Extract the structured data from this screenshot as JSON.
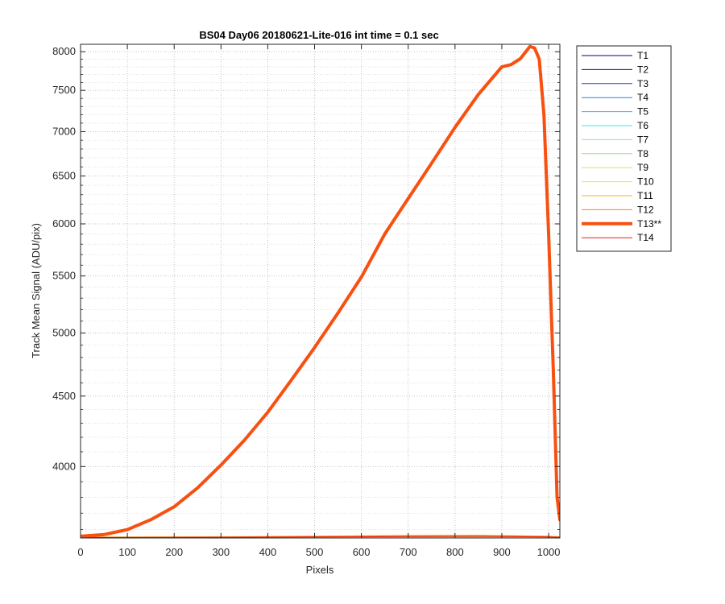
{
  "chart_data": {
    "type": "line",
    "title": "BS04 Day06 20180621-Lite-016 int time = 0.1 sec",
    "xlabel": "Pixels",
    "ylabel": "Track Mean Signal (ADU/pix)",
    "xlim": [
      0,
      1024
    ],
    "ylim": [
      3550,
      8100
    ],
    "yscale": "log",
    "x_ticks": [
      0,
      100,
      200,
      300,
      400,
      500,
      600,
      700,
      800,
      900,
      1000
    ],
    "y_ticks": [
      4000,
      4500,
      5000,
      5500,
      6000,
      6500,
      7000,
      7500,
      8000
    ],
    "y_minor_ticks": [
      3600,
      3700,
      3800,
      3900,
      4100,
      4200,
      4300,
      4400,
      4600,
      4700,
      4800,
      4900,
      5100,
      5200,
      5300,
      5400,
      5600,
      5700,
      5800,
      5900,
      6100,
      6200,
      6300,
      6400,
      6600,
      6700,
      6800,
      6900,
      7100,
      7200,
      7300,
      7400,
      7600,
      7700,
      7800,
      7900
    ],
    "grid": true,
    "minor_grid": true,
    "legend_position": "outside-right",
    "series": [
      {
        "name": "T1",
        "color": "#00008f",
        "width": 1,
        "x": [
          0,
          1024
        ],
        "y": [
          3552,
          3552
        ]
      },
      {
        "name": "T2",
        "color": "#0000d6",
        "width": 1,
        "x": [
          0,
          1024
        ],
        "y": [
          3552,
          3552
        ]
      },
      {
        "name": "T3",
        "color": "#1a3fe0",
        "width": 1,
        "x": [
          0,
          1024
        ],
        "y": [
          3552,
          3552
        ]
      },
      {
        "name": "T4",
        "color": "#2a7fe6",
        "width": 1,
        "x": [
          0,
          1024
        ],
        "y": [
          3553,
          3553
        ]
      },
      {
        "name": "T5",
        "color": "#30b4f0",
        "width": 1,
        "x": [
          0,
          1024
        ],
        "y": [
          3553,
          3553
        ]
      },
      {
        "name": "T6",
        "color": "#3ee6ea",
        "width": 1,
        "x": [
          0,
          1024
        ],
        "y": [
          3553,
          3553
        ]
      },
      {
        "name": "T7",
        "color": "#7ee8c8",
        "width": 1,
        "x": [
          0,
          1024
        ],
        "y": [
          3553,
          3553
        ]
      },
      {
        "name": "T8",
        "color": "#8ee86e",
        "width": 1,
        "x": [
          0,
          1024
        ],
        "y": [
          3554,
          3554
        ]
      },
      {
        "name": "T9",
        "color": "#c8ee50",
        "width": 1,
        "x": [
          0,
          1024
        ],
        "y": [
          3554,
          3554
        ]
      },
      {
        "name": "T10",
        "color": "#f8e816",
        "width": 1,
        "x": [
          0,
          300,
          500,
          700,
          850,
          1000,
          1024
        ],
        "y": [
          3555,
          3556,
          3560,
          3565,
          3566,
          3560,
          3557
        ]
      },
      {
        "name": "T11",
        "color": "#f4b41e",
        "width": 1,
        "x": [
          0,
          300,
          500,
          700,
          850,
          1000,
          1024
        ],
        "y": [
          3555,
          3557,
          3561,
          3566,
          3567,
          3561,
          3557
        ]
      },
      {
        "name": "T12",
        "color": "#f08a1e",
        "width": 1,
        "x": [
          0,
          300,
          500,
          700,
          850,
          1000,
          1024
        ],
        "y": [
          3554,
          3556,
          3559,
          3563,
          3564,
          3559,
          3556
        ]
      },
      {
        "name": "T13**",
        "color": "#f85010",
        "width": 4,
        "x": [
          0,
          50,
          100,
          150,
          200,
          250,
          300,
          350,
          400,
          450,
          500,
          550,
          600,
          650,
          700,
          750,
          800,
          850,
          900,
          920,
          940,
          960,
          970,
          980,
          990,
          1000,
          1010,
          1018,
          1024
        ],
        "y": [
          3560,
          3570,
          3600,
          3660,
          3740,
          3860,
          4010,
          4180,
          4380,
          4620,
          4880,
          5170,
          5490,
          5900,
          6260,
          6640,
          7050,
          7450,
          7800,
          7830,
          7910,
          8070,
          8050,
          7900,
          7200,
          5900,
          4700,
          3800,
          3660
        ]
      },
      {
        "name": "T14",
        "color": "#f01a1a",
        "width": 1,
        "x": [
          0,
          300,
          500,
          700,
          850,
          1000,
          1024
        ],
        "y": [
          3553,
          3554,
          3556,
          3558,
          3559,
          3556,
          3554
        ]
      }
    ]
  }
}
